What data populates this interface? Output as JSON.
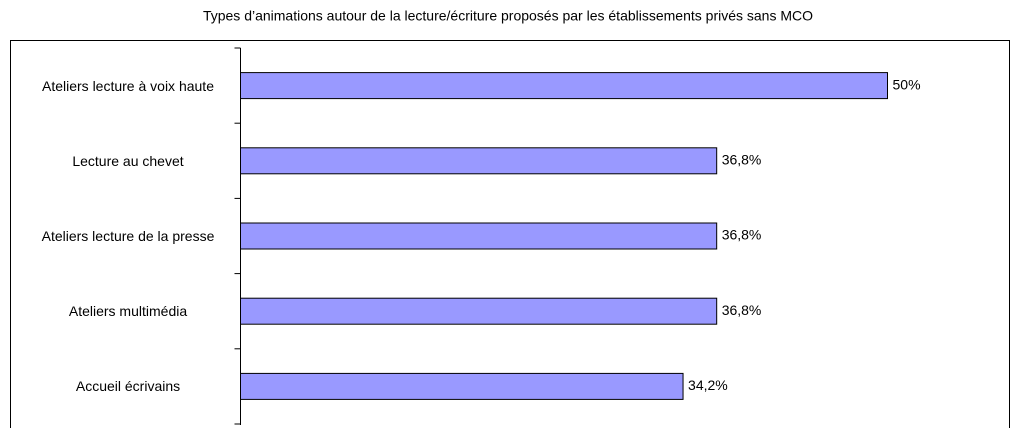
{
  "chart_data": {
    "type": "barh",
    "title": "Types d’animations autour de la lecture/écriture proposés par les établissements privés sans MCO",
    "categories": [
      "Ateliers lecture à voix haute",
      "Lecture au chevet",
      "Ateliers lecture de la presse",
      "Ateliers multimédia",
      "Accueil écrivains"
    ],
    "values": [
      50,
      36.8,
      36.8,
      36.8,
      34.2
    ],
    "value_labels": [
      "50%",
      "36,8%",
      "36,8%",
      "36,8%",
      "34,2%"
    ],
    "color": "#9999ff"
  }
}
